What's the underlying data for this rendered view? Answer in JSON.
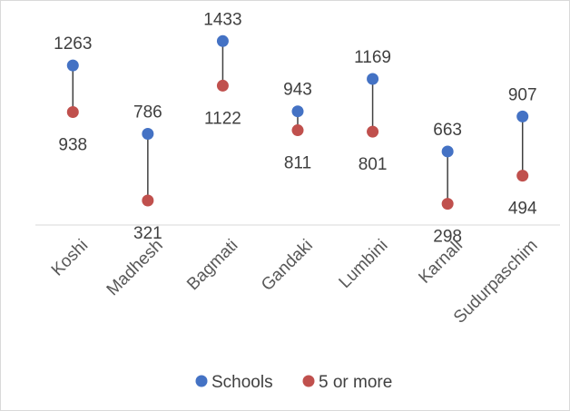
{
  "chart_data": {
    "type": "scatter",
    "style": "dumbbell",
    "categories": [
      "Koshi",
      "Madhesh",
      "Bagmati",
      "Gandaki",
      "Lumbini",
      "Karnali",
      "Sudurpaschim"
    ],
    "series": [
      {
        "name": "Schools",
        "color": "#4472C4",
        "values": [
          1263,
          786,
          1433,
          943,
          1169,
          663,
          907
        ]
      },
      {
        "name": "5 or more",
        "color": "#C0504D",
        "values": [
          938,
          321,
          1122,
          811,
          801,
          298,
          494
        ]
      }
    ],
    "ylim": [
      150,
      1650
    ],
    "grid": false,
    "legend": "bottom",
    "connector_color": "#404040"
  }
}
